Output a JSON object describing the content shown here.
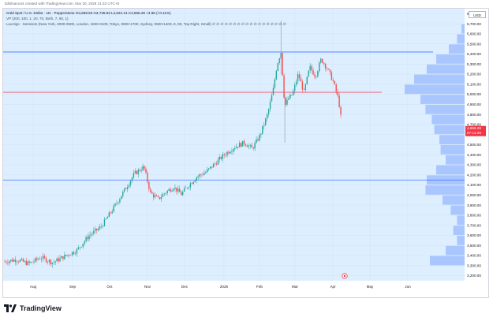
{
  "header": {
    "caption": "bdsilvano44 created with TradingView.com, Mar 20, 2026 21:32 UTC+8"
  },
  "legend": {
    "symbol_line": "Gold Spot / U.S. Dollar · 1D · Pepperstone  O4,659.83  H4,735.93  L4,624.13  C4,655.28  +4.96 (+0.11%)",
    "vp_line": "VP (200, 100, 1, 20, 70, Both, 7, 60, 1)",
    "luxalgo_line": "LuxAlgo · Sessions (New York, 2000-0500, London, 1600-0100, Tokyo, 0800-1700, Sydney, 0500-1400, 8, 90, Top Right, Small)  ∅ ∅ ∅ ∅ ∅ ∅ ∅ ∅ ∅ ∅ ∅ ∅ ∅ ∅ ∅ ∅ ∅ ∅"
  },
  "currency": "USD",
  "brand": {
    "name": "TradingView",
    "icon": "tradingview-logo-icon"
  },
  "colors": {
    "background_tint": "#ddeeff",
    "up_candle": "#26a69a",
    "down_candle": "#ef5350",
    "grid": "#f0f3fa",
    "volume_profile": "#2962ff",
    "resistance_line": "#2962ff",
    "red_line": "#f23645",
    "price_label": "#f23645"
  },
  "chart_data": {
    "type": "candlestick",
    "ylim": [
      3150,
      5850
    ],
    "y_ticks": [
      "3,200.00",
      "3,300.00",
      "3,400.00",
      "3,500.00",
      "3,600.00",
      "3,700.00",
      "3,800.00",
      "3,900.00",
      "4,000.00",
      "4,100.00",
      "4,200.00",
      "4,300.00",
      "4,400.00",
      "4,500.00",
      "4,600.00",
      "4,700.00",
      "4,800.00",
      "4,900.00",
      "5,000.00",
      "5,100.00",
      "5,200.00",
      "5,300.00",
      "5,400.00",
      "5,500.00",
      "5,600.00",
      "5,700.00",
      "5,800.00"
    ],
    "x_ticks": [
      "Aug",
      "Sep",
      "Oct",
      "Nov",
      "Dec",
      "2026",
      "Feb",
      "Mar",
      "Apr",
      "May",
      "Jun"
    ],
    "price_path": [
      [
        0,
        3340
      ],
      [
        12,
        3360
      ],
      [
        25,
        3320
      ],
      [
        38,
        3380
      ],
      [
        50,
        3330
      ],
      [
        62,
        3390
      ],
      [
        75,
        3450
      ],
      [
        88,
        3600
      ],
      [
        100,
        3680
      ],
      [
        112,
        3850
      ],
      [
        125,
        4050
      ],
      [
        135,
        4210
      ],
      [
        145,
        4280
      ],
      [
        152,
        4020
      ],
      [
        160,
        3960
      ],
      [
        168,
        4030
      ],
      [
        176,
        4080
      ],
      [
        184,
        4010
      ],
      [
        192,
        4100
      ],
      [
        200,
        4180
      ],
      [
        210,
        4230
      ],
      [
        220,
        4320
      ],
      [
        230,
        4410
      ],
      [
        240,
        4480
      ],
      [
        250,
        4520
      ],
      [
        258,
        4460
      ],
      [
        266,
        4590
      ],
      [
        274,
        4800
      ],
      [
        280,
        5050
      ],
      [
        284,
        5300
      ],
      [
        288,
        5420
      ],
      [
        292,
        4880
      ],
      [
        296,
        4960
      ],
      [
        300,
        5000
      ],
      [
        306,
        5200
      ],
      [
        312,
        5020
      ],
      [
        318,
        5270
      ],
      [
        324,
        5180
      ],
      [
        330,
        5350
      ],
      [
        336,
        5260
      ],
      [
        342,
        5140
      ],
      [
        348,
        4950
      ],
      [
        352,
        4660
      ]
    ],
    "horizontal_lines": [
      {
        "price": 5420,
        "style": "blue"
      },
      {
        "price": 5020,
        "style": "red"
      },
      {
        "price": 4150,
        "style": "blue"
      }
    ],
    "last_price": "4,655.28",
    "countdown": "07:12:28",
    "volume_profile": [
      {
        "price": 3350,
        "volume": 0.55
      },
      {
        "price": 3450,
        "volume": 0.3
      },
      {
        "price": 3550,
        "volume": 0.12
      },
      {
        "price": 3650,
        "volume": 0.18
      },
      {
        "price": 3750,
        "volume": 0.12
      },
      {
        "price": 3850,
        "volume": 0.22
      },
      {
        "price": 3950,
        "volume": 0.35
      },
      {
        "price": 4050,
        "volume": 0.62
      },
      {
        "price": 4150,
        "volume": 0.6
      },
      {
        "price": 4250,
        "volume": 0.45
      },
      {
        "price": 4350,
        "volume": 0.3
      },
      {
        "price": 4450,
        "volume": 0.38
      },
      {
        "price": 4550,
        "volume": 0.4
      },
      {
        "price": 4650,
        "volume": 0.48
      },
      {
        "price": 4750,
        "volume": 0.52
      },
      {
        "price": 4850,
        "volume": 0.62
      },
      {
        "price": 4950,
        "volume": 0.7
      },
      {
        "price": 5050,
        "volume": 0.95
      },
      {
        "price": 5150,
        "volume": 0.8
      },
      {
        "price": 5250,
        "volume": 0.6
      },
      {
        "price": 5350,
        "volume": 0.45
      },
      {
        "price": 5450,
        "volume": 0.25
      },
      {
        "price": 5550,
        "volume": 0.12
      },
      {
        "price": 5650,
        "volume": 0.05
      }
    ]
  }
}
